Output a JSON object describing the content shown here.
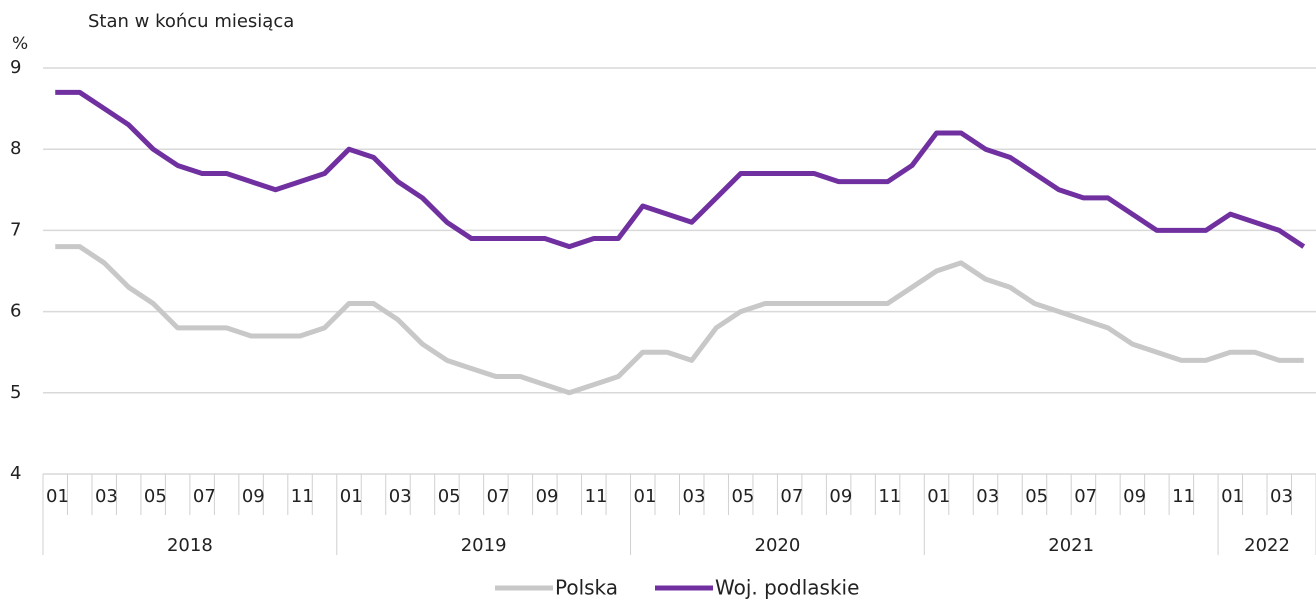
{
  "chart_data": {
    "type": "line",
    "subtitle": "Stan w końcu miesiąca",
    "y_unit": "%",
    "categories": [
      "01",
      null,
      "03",
      null,
      "05",
      null,
      "07",
      null,
      "09",
      null,
      "11",
      null,
      "01",
      null,
      "03",
      null,
      "05",
      null,
      "07",
      null,
      "09",
      null,
      "11",
      null,
      "01",
      null,
      "03",
      null,
      "05",
      null,
      "07",
      null,
      "09",
      null,
      "11",
      null,
      "01",
      null,
      "03",
      null,
      "05",
      null,
      "07",
      null,
      "09",
      null,
      "11",
      null,
      "01",
      null,
      "03",
      null
    ],
    "year_groups": [
      "2018",
      "2019",
      "2020",
      "2021",
      "2022"
    ],
    "series": [
      {
        "name": "Polska",
        "color": "#c8c8c8",
        "values": [
          6.8,
          6.8,
          6.6,
          6.3,
          6.1,
          5.8,
          5.8,
          5.8,
          5.7,
          5.7,
          5.7,
          5.8,
          6.1,
          6.1,
          5.9,
          5.6,
          5.4,
          5.3,
          5.2,
          5.2,
          5.1,
          5.0,
          5.1,
          5.2,
          5.5,
          5.5,
          5.4,
          5.8,
          6.0,
          6.1,
          6.1,
          6.1,
          6.1,
          6.1,
          6.1,
          6.3,
          6.5,
          6.6,
          6.4,
          6.3,
          6.1,
          6.0,
          5.9,
          5.8,
          5.6,
          5.5,
          5.4,
          5.4,
          5.5,
          5.5,
          5.4,
          5.4
        ]
      },
      {
        "name": "Woj. podlaskie",
        "color": "#7030a0",
        "values": [
          8.7,
          8.7,
          8.5,
          8.3,
          8.0,
          7.8,
          7.7,
          7.7,
          7.6,
          7.5,
          7.6,
          7.7,
          8.0,
          7.9,
          7.6,
          7.4,
          7.1,
          6.9,
          6.9,
          6.9,
          6.9,
          6.8,
          6.9,
          6.9,
          7.3,
          7.2,
          7.1,
          7.4,
          7.7,
          7.7,
          7.7,
          7.7,
          7.6,
          7.6,
          7.6,
          7.8,
          8.2,
          8.2,
          8.0,
          7.9,
          7.7,
          7.5,
          7.4,
          7.4,
          7.2,
          7.0,
          7.0,
          7.0,
          7.2,
          7.1,
          7.0,
          6.8
        ]
      }
    ],
    "ylim": [
      4,
      9
    ],
    "yticks": [
      4,
      5,
      6,
      7,
      8,
      9
    ],
    "grid": true
  }
}
